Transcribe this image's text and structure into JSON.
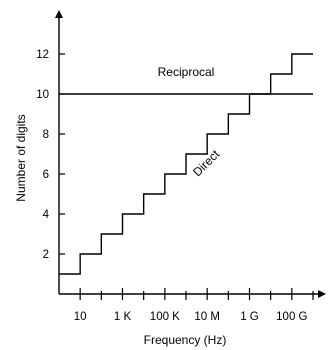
{
  "chart_data": {
    "type": "line",
    "xlabel": "Frequency (Hz)",
    "ylabel": "Number of digits",
    "x_tick_labels": [
      "10",
      "1 K",
      "100 K",
      "10 M",
      "1 G",
      "100 G"
    ],
    "x_tick_values_hz": [
      10,
      1000,
      100000,
      10000000,
      1000000000,
      100000000000
    ],
    "x_scale": "log",
    "xlim_hz": [
      1,
      1000000000000
    ],
    "y_ticks": [
      2,
      4,
      6,
      8,
      10,
      12
    ],
    "ylim": [
      0,
      14
    ],
    "grid": false,
    "series": [
      {
        "name": "Reciprocal",
        "kind": "horizontal",
        "x_hz": [
          1,
          1000000000000
        ],
        "y": [
          10,
          10
        ]
      },
      {
        "name": "Direct",
        "kind": "step",
        "x_hz": [
          1,
          10,
          100,
          1000,
          10000,
          100000,
          1000000,
          10000000,
          100000000,
          1000000000,
          10000000000,
          100000000000,
          1000000000000
        ],
        "y": [
          1,
          2,
          3,
          4,
          5,
          6,
          7,
          8,
          9,
          10,
          11,
          12,
          12
        ]
      }
    ],
    "colors": {
      "lines": "#000000",
      "background": "#ffffff"
    }
  }
}
